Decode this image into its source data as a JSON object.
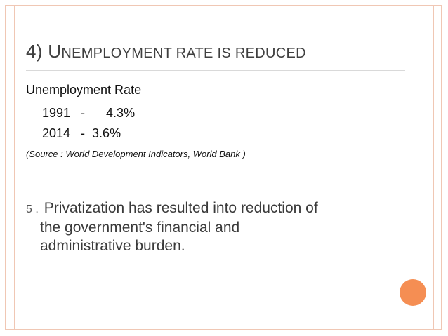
{
  "slide": {
    "title_lead": "4) U",
    "title_rest": "NEMPLOYMENT RATE IS REDUCED",
    "heading": "Unemployment Rate",
    "rows": [
      "1991   -      4.3%",
      "2014   -  3.6%"
    ],
    "source": "(Source : World Development Indicators, World Bank )",
    "point_number": "5 .",
    "point_line1": "Privatization has resulted into reduction of",
    "point_line2": "the government's financial and",
    "point_line3": "administrative burden."
  },
  "colors": {
    "frame": "#f0c7b4",
    "accent_circle": "#f58e53"
  }
}
